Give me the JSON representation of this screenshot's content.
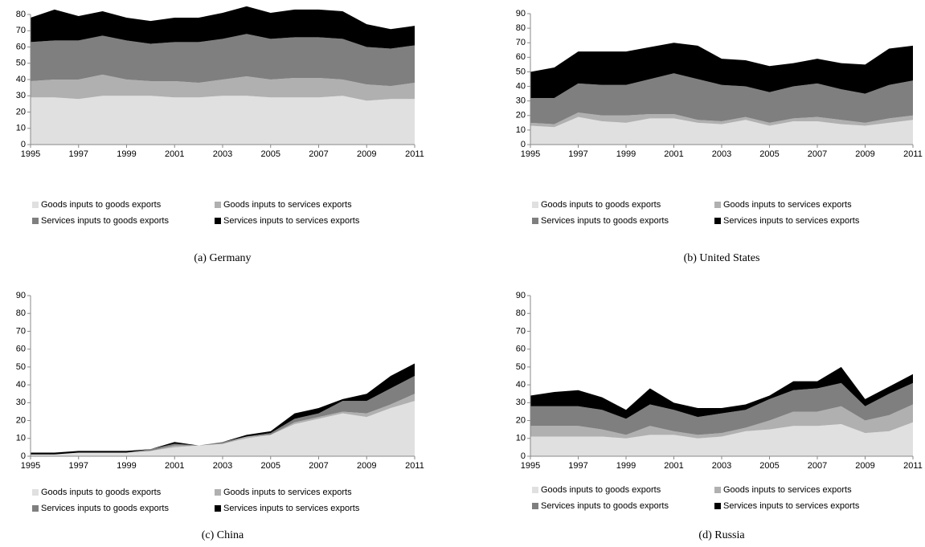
{
  "chart_data": [
    {
      "type": "stacked-area",
      "caption": "(a)  Germany",
      "x": [
        1995,
        1996,
        1997,
        1998,
        1999,
        2000,
        2001,
        2002,
        2003,
        2004,
        2005,
        2006,
        2007,
        2008,
        2009,
        2010,
        2011
      ],
      "xlim": [
        1995,
        2011
      ],
      "xticks": [
        1995,
        1997,
        1999,
        2001,
        2003,
        2005,
        2007,
        2009,
        2011
      ],
      "ylim": [
        0,
        80
      ],
      "yticks": [
        0,
        10,
        20,
        30,
        40,
        50,
        60,
        70,
        80
      ],
      "series": [
        {
          "name": "Goods inputs to goods exports",
          "color": "#e0e0e0",
          "values": [
            29,
            29,
            28,
            30,
            30,
            30,
            29,
            29,
            30,
            30,
            29,
            29,
            29,
            30,
            27,
            28,
            28
          ]
        },
        {
          "name": "Goods inputs to services exports",
          "color": "#b0b0b0",
          "values": [
            10,
            11,
            12,
            13,
            10,
            9,
            10,
            9,
            10,
            12,
            11,
            12,
            12,
            10,
            10,
            8,
            10
          ]
        },
        {
          "name": "Services inputs to goods exports",
          "color": "#7f7f7f",
          "values": [
            24,
            24,
            24,
            24,
            24,
            23,
            24,
            25,
            25,
            26,
            25,
            25,
            25,
            25,
            23,
            23,
            23
          ]
        },
        {
          "name": "Services inputs to services exports",
          "color": "#000000",
          "values": [
            15,
            19,
            15,
            15,
            14,
            14,
            15,
            15,
            16,
            17,
            16,
            17,
            17,
            17,
            14,
            12,
            12
          ]
        }
      ]
    },
    {
      "type": "stacked-area",
      "caption": "(b)  United States",
      "x": [
        1995,
        1996,
        1997,
        1998,
        1999,
        2000,
        2001,
        2002,
        2003,
        2004,
        2005,
        2006,
        2007,
        2008,
        2009,
        2010,
        2011
      ],
      "xlim": [
        1995,
        2011
      ],
      "xticks": [
        1995,
        1997,
        1999,
        2001,
        2003,
        2005,
        2007,
        2009,
        2011
      ],
      "ylim": [
        0,
        90
      ],
      "yticks": [
        0,
        10,
        20,
        30,
        40,
        50,
        60,
        70,
        80,
        90
      ],
      "series": [
        {
          "name": "Goods inputs to goods exports",
          "color": "#e0e0e0",
          "values": [
            13,
            12,
            19,
            16,
            15,
            18,
            18,
            15,
            14,
            17,
            13,
            16,
            16,
            14,
            13,
            15,
            17
          ]
        },
        {
          "name": "Goods inputs to services exports",
          "color": "#b0b0b0",
          "values": [
            2,
            2,
            3,
            4,
            5,
            3,
            3,
            2,
            2,
            2,
            2,
            2,
            3,
            3,
            2,
            3,
            3
          ]
        },
        {
          "name": "Services inputs to goods exports",
          "color": "#7f7f7f",
          "values": [
            17,
            18,
            20,
            21,
            21,
            24,
            28,
            28,
            25,
            21,
            21,
            22,
            23,
            21,
            20,
            23,
            24
          ]
        },
        {
          "name": "Services inputs to services exports",
          "color": "#000000",
          "values": [
            18,
            21,
            22,
            23,
            23,
            22,
            21,
            23,
            18,
            18,
            18,
            16,
            17,
            18,
            20,
            25,
            24
          ]
        }
      ]
    },
    {
      "type": "stacked-area",
      "caption": "(c)  China",
      "x": [
        1995,
        1996,
        1997,
        1998,
        1999,
        2000,
        2001,
        2002,
        2003,
        2004,
        2005,
        2006,
        2007,
        2008,
        2009,
        2010,
        2011
      ],
      "xlim": [
        1995,
        2011
      ],
      "xticks": [
        1995,
        1997,
        1999,
        2001,
        2003,
        2005,
        2007,
        2009,
        2011
      ],
      "ylim": [
        0,
        90
      ],
      "yticks": [
        0,
        10,
        20,
        30,
        40,
        50,
        60,
        70,
        80,
        90
      ],
      "series": [
        {
          "name": "Goods inputs to goods exports",
          "color": "#e0e0e0",
          "values": [
            1,
            1,
            2,
            2,
            2,
            3,
            5,
            6,
            7,
            10,
            12,
            18,
            21,
            24,
            22,
            27,
            31
          ]
        },
        {
          "name": "Goods inputs to services exports",
          "color": "#b0b0b0",
          "values": [
            0,
            0,
            0,
            0,
            0,
            0,
            1,
            0,
            0,
            1,
            0,
            1,
            1,
            1,
            2,
            2,
            4
          ]
        },
        {
          "name": "Services inputs to goods exports",
          "color": "#7f7f7f",
          "values": [
            0,
            0,
            0,
            0,
            0,
            1,
            1,
            0,
            1,
            0,
            1,
            2,
            2,
            6,
            7,
            9,
            10
          ]
        },
        {
          "name": "Services inputs to services exports",
          "color": "#000000",
          "values": [
            1,
            1,
            1,
            1,
            1,
            0,
            1,
            0,
            0,
            1,
            1,
            3,
            3,
            1,
            4,
            7,
            7
          ]
        }
      ]
    },
    {
      "type": "stacked-area",
      "caption": "(d)  Russia",
      "x": [
        1995,
        1996,
        1997,
        1998,
        1999,
        2000,
        2001,
        2002,
        2003,
        2004,
        2005,
        2006,
        2007,
        2008,
        2009,
        2010,
        2011
      ],
      "xlim": [
        1995,
        2011
      ],
      "xticks": [
        1995,
        1997,
        1999,
        2001,
        2003,
        2005,
        2007,
        2009,
        2011
      ],
      "ylim": [
        0,
        90
      ],
      "yticks": [
        0,
        10,
        20,
        30,
        40,
        50,
        60,
        70,
        80,
        90
      ],
      "series": [
        {
          "name": "Goods inputs to goods exports",
          "color": "#e0e0e0",
          "values": [
            11,
            11,
            11,
            11,
            10,
            12,
            12,
            10,
            11,
            14,
            15,
            17,
            17,
            18,
            13,
            14,
            19
          ]
        },
        {
          "name": "Goods inputs to services exports",
          "color": "#b0b0b0",
          "values": [
            6,
            6,
            6,
            4,
            2,
            5,
            2,
            2,
            2,
            2,
            5,
            8,
            8,
            10,
            7,
            9,
            10
          ]
        },
        {
          "name": "Services inputs to goods exports",
          "color": "#7f7f7f",
          "values": [
            11,
            11,
            11,
            11,
            9,
            12,
            12,
            10,
            11,
            10,
            12,
            12,
            13,
            13,
            8,
            12,
            12
          ]
        },
        {
          "name": "Services inputs to services exports",
          "color": "#000000",
          "values": [
            6,
            8,
            9,
            7,
            5,
            9,
            4,
            5,
            3,
            3,
            2,
            5,
            4,
            9,
            4,
            4,
            5
          ]
        }
      ]
    }
  ]
}
